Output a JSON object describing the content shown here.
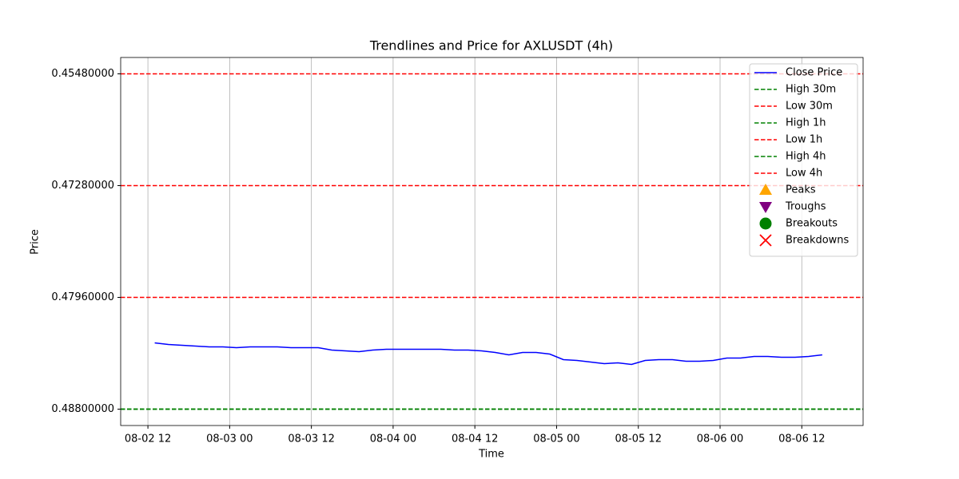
{
  "chart_data": {
    "type": "line",
    "title": "Trendlines and Price for AXLUSDT (4h)",
    "x_label": "Time",
    "y_label": "Price",
    "xlim": [
      "08-02 08",
      "08-06 21"
    ],
    "xticks": [
      "08-02 12",
      "08-03 00",
      "08-03 12",
      "08-04 00",
      "08-04 12",
      "08-05 00",
      "08-05 12",
      "08-06 00",
      "08-06 12"
    ],
    "ylim": [
      0.4521,
      0.4892
    ],
    "yticks": [
      {
        "value": 0.4548,
        "label": "0.45480000"
      },
      {
        "value": 0.4728,
        "label": "0.47280000"
      },
      {
        "value": 0.4796,
        "label": "0.47960000"
      },
      {
        "value": 0.488,
        "label": "0.48800000"
      }
    ],
    "y_inverted": true,
    "grid": "x",
    "legend": "upper right",
    "x": [
      "08-02 13",
      "08-02 15",
      "08-02 17",
      "08-02 19",
      "08-02 21",
      "08-02 23",
      "08-03 01",
      "08-03 03",
      "08-03 05",
      "08-03 07",
      "08-03 09",
      "08-03 11",
      "08-03 13",
      "08-03 15",
      "08-03 17",
      "08-03 19",
      "08-03 21",
      "08-03 23",
      "08-04 01",
      "08-04 03",
      "08-04 05",
      "08-04 07",
      "08-04 09",
      "08-04 11",
      "08-04 13",
      "08-04 15",
      "08-04 17",
      "08-04 19",
      "08-04 21",
      "08-04 23",
      "08-05 01",
      "08-05 03",
      "08-05 05",
      "08-05 07",
      "08-05 09",
      "08-05 11",
      "08-05 13",
      "08-05 15",
      "08-05 17",
      "08-05 19",
      "08-05 21",
      "08-05 23",
      "08-06 01",
      "08-06 03",
      "08-06 05",
      "08-06 07",
      "08-06 09",
      "08-06 11",
      "08-06 13",
      "08-06 15"
    ],
    "series": [
      {
        "name": "Close Price",
        "color": "#0000ff",
        "values": [
          0.48302,
          0.48314,
          0.4832,
          0.48326,
          0.48332,
          0.48332,
          0.48338,
          0.48332,
          0.48332,
          0.48332,
          0.48338,
          0.48338,
          0.48338,
          0.48356,
          0.48362,
          0.48368,
          0.48356,
          0.4835,
          0.4835,
          0.4835,
          0.4835,
          0.4835,
          0.48356,
          0.48356,
          0.48362,
          0.48374,
          0.48392,
          0.48374,
          0.48374,
          0.48386,
          0.48428,
          0.48434,
          0.48446,
          0.48458,
          0.48452,
          0.48464,
          0.48434,
          0.48428,
          0.48428,
          0.4844,
          0.4844,
          0.48434,
          0.48416,
          0.48416,
          0.48404,
          0.48404,
          0.4841,
          0.4841,
          0.48404,
          0.48392
        ]
      }
    ],
    "hlines": [
      {
        "name": "High 30m",
        "color": "#008000",
        "value": 0.488
      },
      {
        "name": "Low 30m",
        "color": "#ff0000",
        "value": 0.4796
      },
      {
        "name": "High 1h",
        "color": "#008000",
        "value": 0.488
      },
      {
        "name": "Low 1h",
        "color": "#ff0000",
        "value": 0.4728
      },
      {
        "name": "High 4h",
        "color": "#008000",
        "value": 0.488
      },
      {
        "name": "Low 4h",
        "color": "#ff0000",
        "value": 0.4548
      }
    ],
    "marker_series": [
      {
        "name": "Peaks",
        "color": "#ffa500",
        "marker": "triangle-up"
      },
      {
        "name": "Troughs",
        "color": "#800080",
        "marker": "triangle-down"
      },
      {
        "name": "Breakouts",
        "color": "#008000",
        "marker": "circle"
      },
      {
        "name": "Breakdowns",
        "color": "#ff0000",
        "marker": "x"
      }
    ]
  }
}
